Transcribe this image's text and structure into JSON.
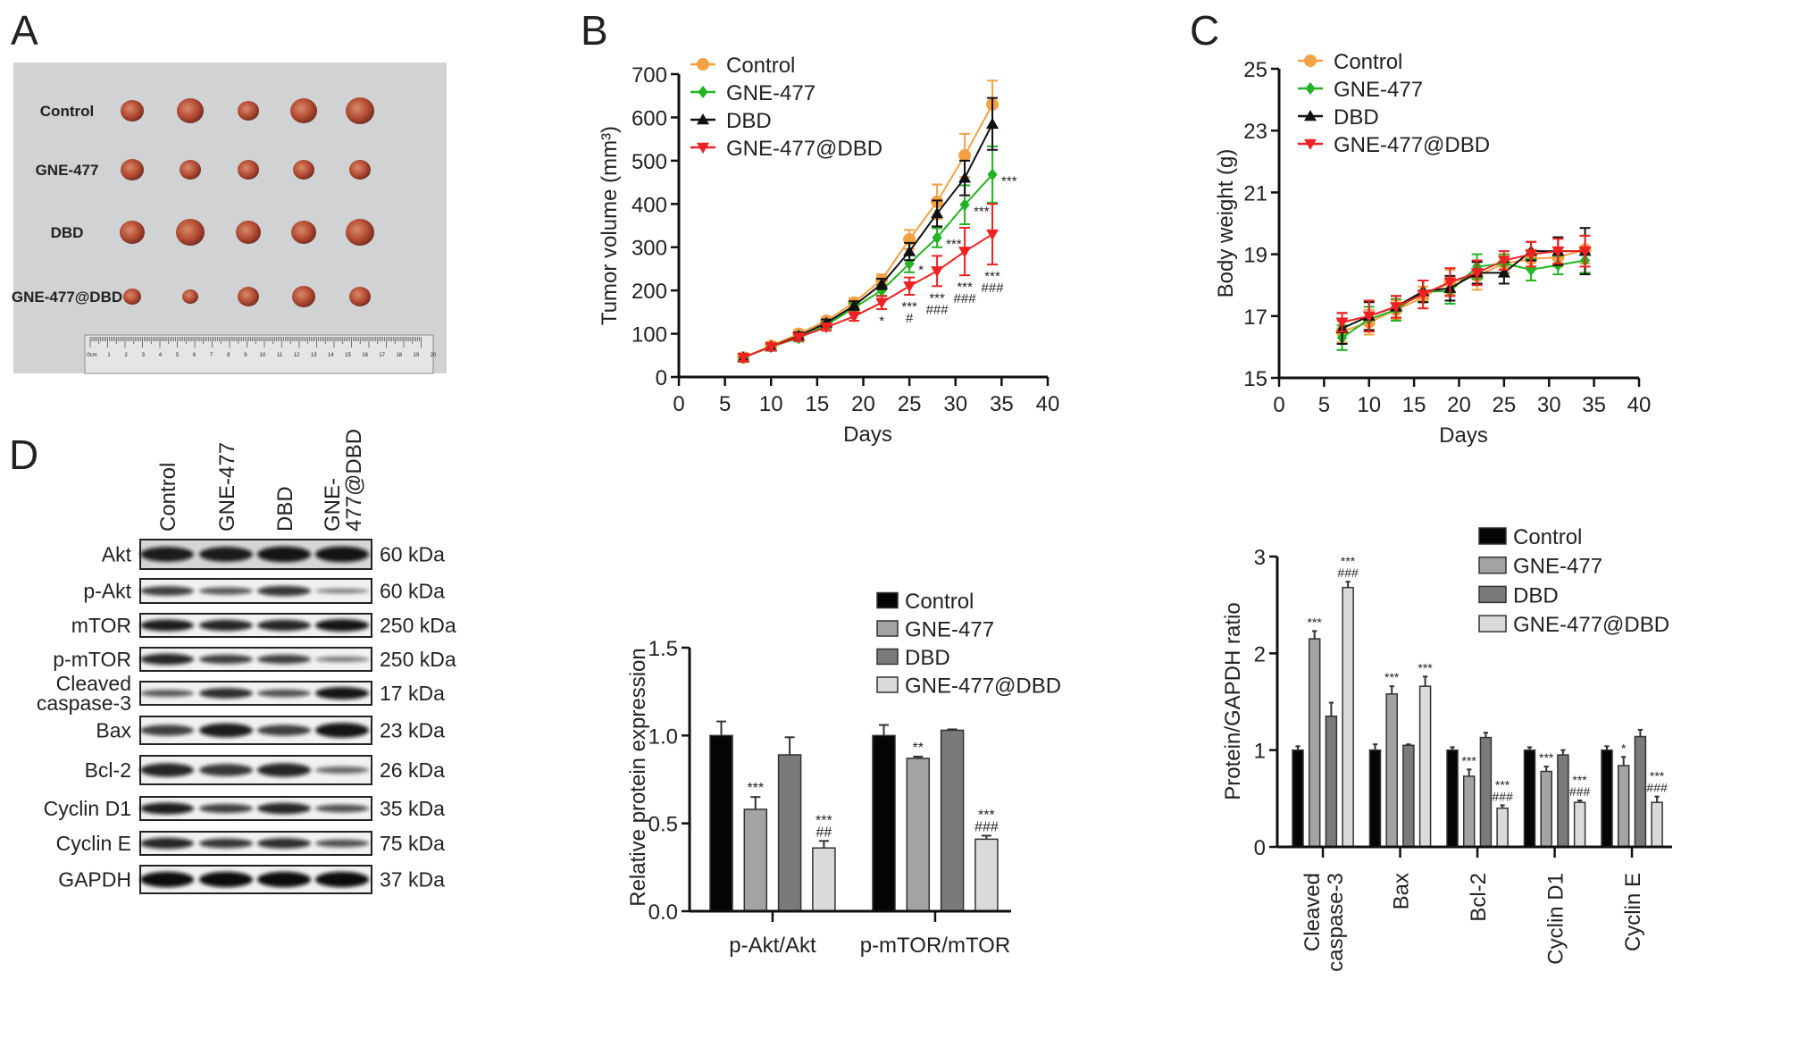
{
  "panel_labels": [
    "A",
    "B",
    "C",
    "D"
  ],
  "photo": {
    "row_labels": [
      "Control",
      "GNE-477",
      "DBD",
      "GNE-477@DBD"
    ],
    "ruler_labels": [
      "0cm",
      "1",
      "2",
      "3",
      "4",
      "5",
      "6",
      "7",
      "8",
      "9",
      "10",
      "11",
      "12",
      "13",
      "14",
      "15",
      "16",
      "17",
      "18",
      "19",
      "20"
    ]
  },
  "blot": {
    "lanes": [
      [
        "Control"
      ],
      [
        "GNE-477"
      ],
      [
        "DBD"
      ],
      [
        "GNE-",
        "477@DBD"
      ]
    ],
    "rows": [
      {
        "label": [
          "Akt"
        ],
        "kda": "60 kDa",
        "intensity": [
          0.9,
          0.9,
          0.95,
          0.95
        ]
      },
      {
        "label": [
          "p-Akt"
        ],
        "kda": "60 kDa",
        "intensity": [
          0.7,
          0.55,
          0.75,
          0.35
        ]
      },
      {
        "label": [
          "mTOR"
        ],
        "kda": "250 kDa",
        "intensity": [
          0.9,
          0.85,
          0.85,
          0.95
        ]
      },
      {
        "label": [
          "p-mTOR"
        ],
        "kda": "250 kDa",
        "intensity": [
          0.85,
          0.7,
          0.7,
          0.4
        ]
      },
      {
        "label": [
          "Cleaved",
          "caspase-3"
        ],
        "kda": "17 kDa",
        "intensity": [
          0.55,
          0.8,
          0.6,
          0.95
        ]
      },
      {
        "label": [
          "Bax"
        ],
        "kda": "23 kDa",
        "intensity": [
          0.7,
          0.9,
          0.7,
          0.95
        ]
      },
      {
        "label": [
          "Bcl-2"
        ],
        "kda": "26 kDa",
        "intensity": [
          0.85,
          0.75,
          0.85,
          0.45
        ]
      },
      {
        "label": [
          "Cyclin D1"
        ],
        "kda": "35 kDa",
        "intensity": [
          0.9,
          0.7,
          0.85,
          0.6
        ]
      },
      {
        "label": [
          "Cyclin E"
        ],
        "kda": "75 kDa",
        "intensity": [
          0.85,
          0.75,
          0.8,
          0.6
        ]
      },
      {
        "label": [
          "GAPDH"
        ],
        "kda": "37 kDa",
        "intensity": [
          1,
          1,
          1,
          1
        ]
      }
    ]
  },
  "chart_data": [
    {
      "type": "line",
      "xlabel": "Days",
      "ylabel": "Tumor volume (mm³)",
      "xlim": [
        0,
        40
      ],
      "ylim": [
        0,
        700
      ],
      "xticks": [
        0,
        5,
        10,
        15,
        20,
        25,
        30,
        35,
        40
      ],
      "yticks": [
        0,
        100,
        200,
        300,
        400,
        500,
        600,
        700
      ],
      "grid": false,
      "legend": "top-left",
      "x": [
        7,
        10,
        13,
        16,
        19,
        22,
        25,
        28,
        31,
        34
      ],
      "series": [
        {
          "name": "Control",
          "color": "#f5a043",
          "marker": "circle",
          "values": [
            45,
            72,
            100,
            130,
            172,
            225,
            318,
            405,
            512,
            630
          ],
          "errors": [
            10,
            8,
            8,
            8,
            10,
            12,
            22,
            40,
            50,
            55
          ]
        },
        {
          "name": "GNE-477",
          "color": "#22b422",
          "marker": "diamond",
          "values": [
            45,
            70,
            90,
            120,
            160,
            200,
            262,
            322,
            398,
            468
          ],
          "errors": [
            8,
            8,
            8,
            8,
            10,
            12,
            20,
            22,
            45,
            65
          ]
        },
        {
          "name": "DBD",
          "color": "#111111",
          "marker": "triangle-up",
          "values": [
            45,
            70,
            95,
            125,
            165,
            215,
            290,
            378,
            460,
            585
          ],
          "errors": [
            8,
            8,
            8,
            8,
            10,
            12,
            20,
            30,
            40,
            60
          ]
        },
        {
          "name": "GNE-477@DBD",
          "color": "#ee2222",
          "marker": "triangle-down",
          "values": [
            45,
            70,
            92,
            115,
            140,
            172,
            210,
            245,
            290,
            330
          ],
          "errors": [
            8,
            8,
            8,
            8,
            10,
            15,
            20,
            35,
            55,
            70
          ]
        }
      ],
      "annotations": [
        {
          "series": 3,
          "x": 22,
          "lines": [
            "*"
          ]
        },
        {
          "series": 1,
          "x": 25,
          "lines": [
            "*"
          ]
        },
        {
          "series": 3,
          "x": 25,
          "lines": [
            "***",
            "#"
          ]
        },
        {
          "series": 1,
          "x": 28,
          "lines": [
            "***"
          ]
        },
        {
          "series": 3,
          "x": 28,
          "lines": [
            "***",
            "###"
          ]
        },
        {
          "series": 1,
          "x": 31,
          "lines": [
            "***"
          ]
        },
        {
          "series": 3,
          "x": 31,
          "lines": [
            "***",
            "###"
          ]
        },
        {
          "series": 1,
          "x": 34,
          "lines": [
            "***"
          ]
        },
        {
          "series": 3,
          "x": 34,
          "lines": [
            "***",
            "###"
          ]
        }
      ]
    },
    {
      "type": "line",
      "xlabel": "Days",
      "ylabel": "Body weight (g)",
      "xlim": [
        0,
        40
      ],
      "ylim": [
        15,
        25
      ],
      "xticks": [
        0,
        5,
        10,
        15,
        20,
        25,
        30,
        35,
        40
      ],
      "yticks": [
        15,
        17,
        19,
        21,
        23,
        25
      ],
      "grid": false,
      "legend": "top-left",
      "x": [
        7,
        10,
        13,
        16,
        19,
        22,
        25,
        28,
        31,
        34
      ],
      "series": [
        {
          "name": "Control",
          "color": "#f5a043",
          "marker": "circle",
          "values": [
            16.5,
            16.8,
            17.2,
            17.6,
            18.1,
            18.3,
            18.7,
            18.85,
            18.9,
            19.15
          ],
          "errors": [
            0.35,
            0.4,
            0.3,
            0.35,
            0.4,
            0.45,
            0.3,
            0.3,
            0.3,
            0.45
          ]
        },
        {
          "name": "GNE-477",
          "color": "#22b422",
          "marker": "diamond",
          "values": [
            16.3,
            16.9,
            17.2,
            17.8,
            17.8,
            18.6,
            18.7,
            18.5,
            18.65,
            18.8
          ],
          "errors": [
            0.4,
            0.4,
            0.35,
            0.35,
            0.4,
            0.4,
            0.3,
            0.35,
            0.3,
            0.4
          ]
        },
        {
          "name": "DBD",
          "color": "#111111",
          "marker": "triangle-up",
          "values": [
            16.6,
            17.0,
            17.3,
            17.8,
            17.9,
            18.4,
            18.4,
            19.1,
            19.1,
            19.1
          ],
          "errors": [
            0.5,
            0.45,
            0.35,
            0.35,
            0.4,
            0.35,
            0.35,
            0.3,
            0.45,
            0.75
          ]
        },
        {
          "name": "GNE-477@DBD",
          "color": "#ee2222",
          "marker": "triangle-down",
          "values": [
            16.8,
            17.0,
            17.3,
            17.7,
            18.1,
            18.4,
            18.8,
            19.0,
            19.1,
            19.1
          ],
          "errors": [
            0.3,
            0.5,
            0.35,
            0.45,
            0.45,
            0.4,
            0.3,
            0.4,
            0.4,
            0.5
          ]
        }
      ],
      "annotations": []
    },
    {
      "type": "bar",
      "ylabel": "Relative protein expression",
      "ylim": [
        0,
        1.5
      ],
      "yticks": [
        0,
        0.5,
        1.0,
        1.5
      ],
      "ytick_labels": [
        "0.0",
        "0.5",
        "1.0",
        "1.5"
      ],
      "grid": false,
      "legend": "top-right",
      "categories": [
        [
          "p-Akt/Akt"
        ],
        [
          "p-mTOR/mTOR"
        ]
      ],
      "series": [
        {
          "name": "Control",
          "color": "#050505",
          "values": [
            1.0,
            1.0
          ],
          "errors": [
            0.08,
            0.06
          ]
        },
        {
          "name": "GNE-477",
          "color": "#a3a3a3",
          "values": [
            0.58,
            0.87
          ],
          "errors": [
            0.07,
            0.01
          ]
        },
        {
          "name": "DBD",
          "color": "#7a7a7a",
          "values": [
            0.89,
            1.03
          ],
          "errors": [
            0.1,
            0.005
          ]
        },
        {
          "name": "GNE-477@DBD",
          "color": "#dadada",
          "values": [
            0.36,
            0.41
          ],
          "errors": [
            0.04,
            0.02
          ]
        }
      ],
      "annotations": [
        {
          "category": 0,
          "series": 1,
          "lines": [
            "***"
          ]
        },
        {
          "category": 0,
          "series": 3,
          "lines": [
            "***",
            "##"
          ]
        },
        {
          "category": 1,
          "series": 1,
          "lines": [
            "**"
          ]
        },
        {
          "category": 1,
          "series": 3,
          "lines": [
            "***",
            "###"
          ]
        }
      ]
    },
    {
      "type": "bar",
      "ylabel": "Protein/GAPDH ratio",
      "ylim": [
        0,
        3
      ],
      "yticks": [
        0,
        1,
        2,
        3
      ],
      "ytick_labels": [
        "0",
        "1",
        "2",
        "3"
      ],
      "grid": false,
      "legend": "top-right",
      "categories": [
        [
          "Cleaved",
          "caspase-3"
        ],
        [
          "Bax"
        ],
        [
          "Bcl-2"
        ],
        [
          "Cyclin D1"
        ],
        [
          "Cyclin E"
        ]
      ],
      "series": [
        {
          "name": "Control",
          "color": "#050505",
          "values": [
            1.0,
            1.0,
            1.0,
            1.0,
            1.0
          ],
          "errors": [
            0.04,
            0.06,
            0.03,
            0.03,
            0.04
          ]
        },
        {
          "name": "GNE-477",
          "color": "#a3a3a3",
          "values": [
            2.15,
            1.58,
            0.73,
            0.78,
            0.84
          ],
          "errors": [
            0.08,
            0.08,
            0.07,
            0.05,
            0.09
          ]
        },
        {
          "name": "DBD",
          "color": "#7a7a7a",
          "values": [
            1.35,
            1.05,
            1.13,
            0.95,
            1.14
          ],
          "errors": [
            0.14,
            0.01,
            0.05,
            0.05,
            0.07
          ]
        },
        {
          "name": "GNE-477@DBD",
          "color": "#dadada",
          "values": [
            2.68,
            1.66,
            0.4,
            0.46,
            0.46
          ],
          "errors": [
            0.06,
            0.1,
            0.03,
            0.02,
            0.06
          ]
        }
      ],
      "annotations": [
        {
          "category": 0,
          "series": 1,
          "lines": [
            "***"
          ]
        },
        {
          "category": 0,
          "series": 3,
          "lines": [
            "***",
            "###"
          ]
        },
        {
          "category": 1,
          "series": 1,
          "lines": [
            "***"
          ]
        },
        {
          "category": 1,
          "series": 3,
          "lines": [
            "***"
          ]
        },
        {
          "category": 2,
          "series": 1,
          "lines": [
            "***"
          ]
        },
        {
          "category": 2,
          "series": 3,
          "lines": [
            "***",
            "###"
          ]
        },
        {
          "category": 3,
          "series": 1,
          "lines": [
            "***"
          ]
        },
        {
          "category": 3,
          "series": 3,
          "lines": [
            "***",
            "###"
          ]
        },
        {
          "category": 4,
          "series": 1,
          "lines": [
            "*"
          ]
        },
        {
          "category": 4,
          "series": 3,
          "lines": [
            "***",
            "###"
          ]
        }
      ]
    }
  ]
}
